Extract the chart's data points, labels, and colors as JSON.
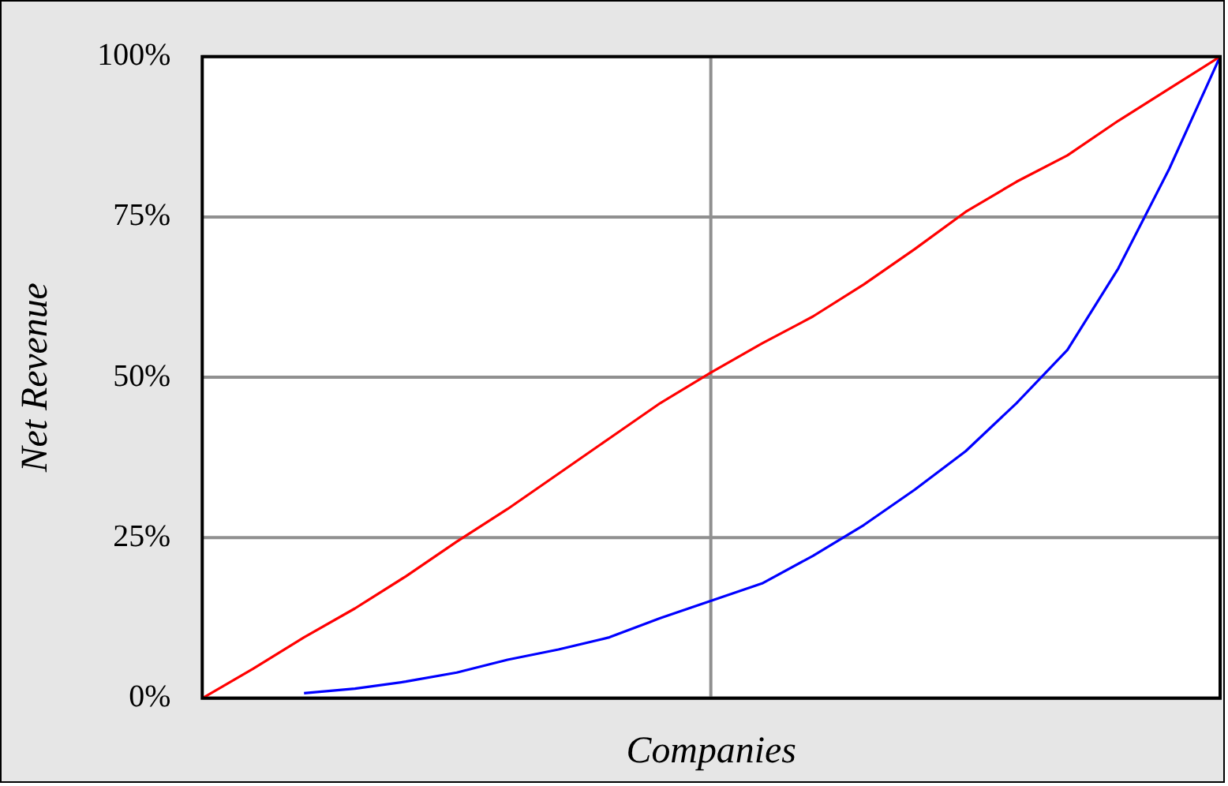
{
  "chart_data": {
    "type": "line",
    "xlabel": "Companies",
    "ylabel": "Net Revenue",
    "categories": [
      null,
      null,
      null,
      null,
      null,
      null,
      null,
      null,
      null,
      null,
      null,
      null,
      null,
      null,
      null,
      null,
      null,
      null,
      null,
      null,
      null
    ],
    "series": [
      {
        "color": "#ff0000",
        "values": [
          0,
          4.6,
          9.5,
          14,
          19,
          24.4,
          29.5,
          35,
          40.5,
          46,
          50.8,
          55.3,
          59.5,
          64.5,
          70,
          75.8,
          80.5,
          84.6,
          90,
          95,
          100
        ]
      },
      {
        "color": "#0000ff",
        "values": [
          null,
          null,
          0.8,
          1.5,
          2.6,
          4,
          6,
          7.6,
          9.5,
          12.5,
          15.2,
          17.9,
          22.2,
          27,
          32.5,
          38.5,
          46,
          54.3,
          67,
          82.5,
          100
        ]
      }
    ],
    "ylim": [
      0,
      100
    ],
    "yticks": [
      {
        "value": 0,
        "label": "0%"
      },
      {
        "value": 25,
        "label": "25%"
      },
      {
        "value": 50,
        "label": "50%"
      },
      {
        "value": 75,
        "label": "75%"
      },
      {
        "value": 100,
        "label": "100%"
      }
    ],
    "grid": true,
    "legend": false,
    "marker": "none",
    "line_style": "solid",
    "tick_labels": "y"
  }
}
